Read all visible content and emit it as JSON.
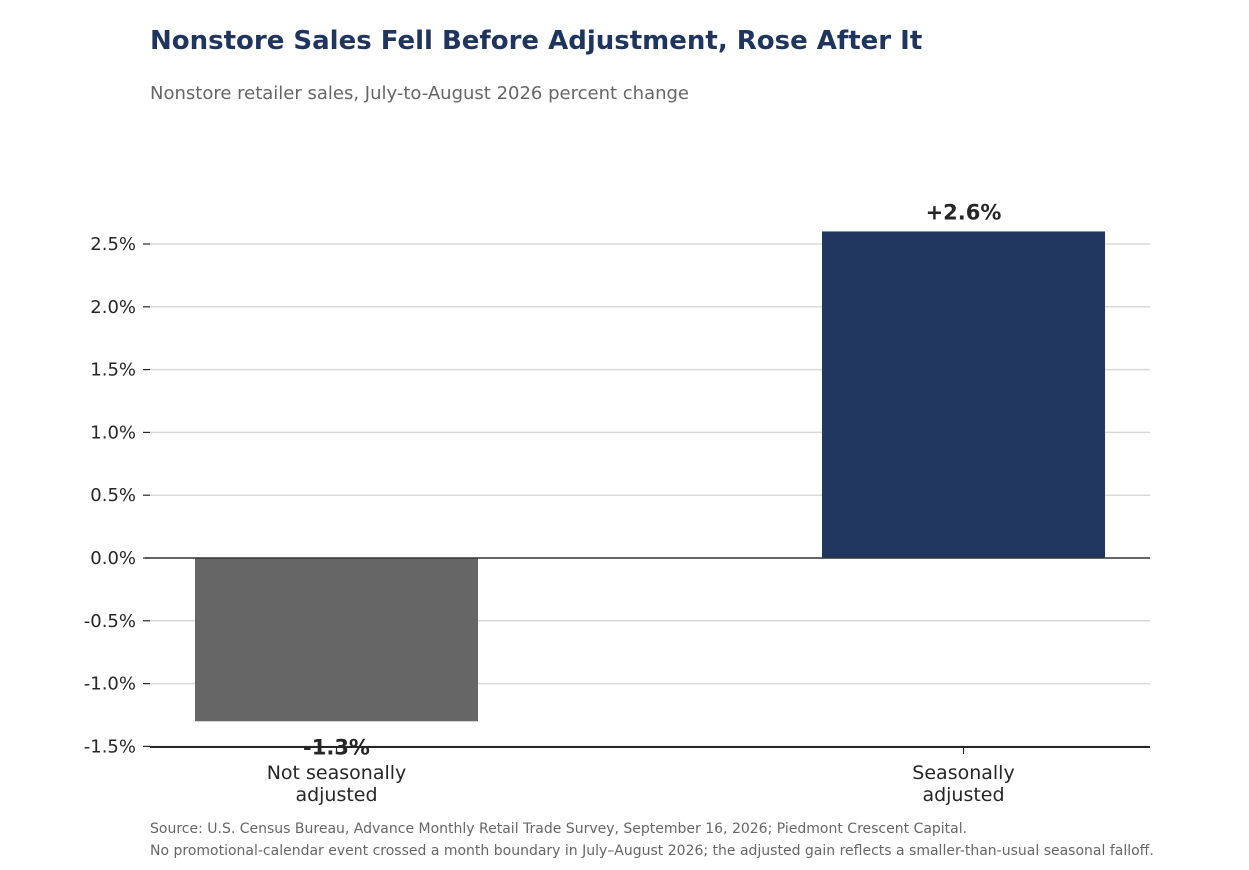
{
  "title": "Nonstore Sales Fell Before Adjustment, Rose After It",
  "subtitle": "Nonstore retailer sales, July-to-August 2026 percent change",
  "notes": [
    "Source: U.S. Census Bureau, Advance Monthly Retail Trade Survey, September 16, 2026; Piedmont Crescent Capital.",
    "No promotional-calendar event crossed a month boundary in July–August 2026; the adjusted gain reflects a smaller-than-usual seasonal falloff."
  ],
  "colors": {
    "title": "#1f355e",
    "not_adjusted_bar": "#666666",
    "adjusted_bar": "#21375f",
    "grid": "#d9d9d9",
    "zero_line": "#333333"
  },
  "chart_data": {
    "type": "bar",
    "title": "Nonstore Sales Fell Before Adjustment, Rose After It",
    "subtitle": "Nonstore retailer sales, July-to-August 2026 percent change",
    "xlabel": "",
    "ylabel": "",
    "categories": [
      [
        "Not seasonally",
        "adjusted"
      ],
      [
        "Seasonally",
        "adjusted"
      ]
    ],
    "values": [
      -1.3,
      2.6
    ],
    "value_labels": [
      "-1.3%",
      "+2.6%"
    ],
    "ylim": [
      -1.5,
      2.8
    ],
    "yticks": [
      -1.5,
      -1.0,
      -0.5,
      0.0,
      0.5,
      1.0,
      1.5,
      2.0,
      2.5
    ],
    "ytick_labels": [
      "-1.5%",
      "-1.0%",
      "-0.5%",
      "0.0%",
      "0.5%",
      "1.0%",
      "1.5%",
      "2.0%",
      "2.5%"
    ],
    "grid": "horizontal",
    "legend": "none"
  }
}
